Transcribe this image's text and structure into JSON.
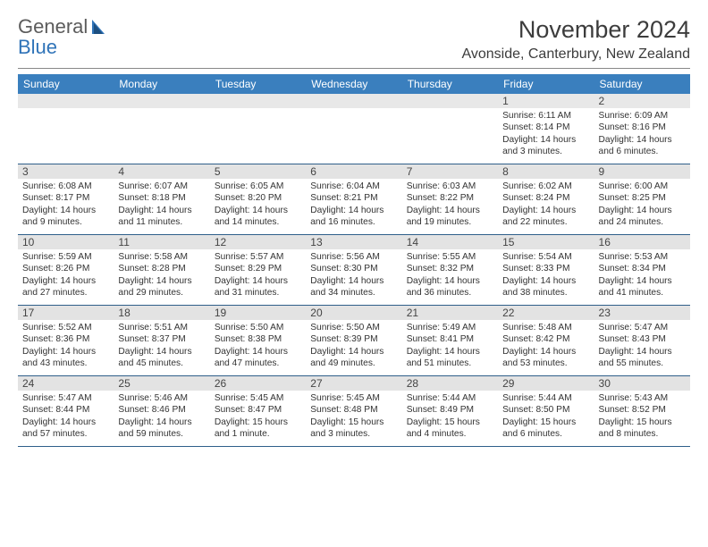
{
  "logo": {
    "line1": "General",
    "line2": "Blue"
  },
  "title": "November 2024",
  "location": "Avonside, Canterbury, New Zealand",
  "header_bg": "#3a7fbe",
  "weekdays": [
    "Sunday",
    "Monday",
    "Tuesday",
    "Wednesday",
    "Thursday",
    "Friday",
    "Saturday"
  ],
  "weeks": [
    [
      {
        "n": "",
        "sr": "",
        "ss": "",
        "dl": ""
      },
      {
        "n": "",
        "sr": "",
        "ss": "",
        "dl": ""
      },
      {
        "n": "",
        "sr": "",
        "ss": "",
        "dl": ""
      },
      {
        "n": "",
        "sr": "",
        "ss": "",
        "dl": ""
      },
      {
        "n": "",
        "sr": "",
        "ss": "",
        "dl": ""
      },
      {
        "n": "1",
        "sr": "Sunrise: 6:11 AM",
        "ss": "Sunset: 8:14 PM",
        "dl": "Daylight: 14 hours and 3 minutes."
      },
      {
        "n": "2",
        "sr": "Sunrise: 6:09 AM",
        "ss": "Sunset: 8:16 PM",
        "dl": "Daylight: 14 hours and 6 minutes."
      }
    ],
    [
      {
        "n": "3",
        "sr": "Sunrise: 6:08 AM",
        "ss": "Sunset: 8:17 PM",
        "dl": "Daylight: 14 hours and 9 minutes."
      },
      {
        "n": "4",
        "sr": "Sunrise: 6:07 AM",
        "ss": "Sunset: 8:18 PM",
        "dl": "Daylight: 14 hours and 11 minutes."
      },
      {
        "n": "5",
        "sr": "Sunrise: 6:05 AM",
        "ss": "Sunset: 8:20 PM",
        "dl": "Daylight: 14 hours and 14 minutes."
      },
      {
        "n": "6",
        "sr": "Sunrise: 6:04 AM",
        "ss": "Sunset: 8:21 PM",
        "dl": "Daylight: 14 hours and 16 minutes."
      },
      {
        "n": "7",
        "sr": "Sunrise: 6:03 AM",
        "ss": "Sunset: 8:22 PM",
        "dl": "Daylight: 14 hours and 19 minutes."
      },
      {
        "n": "8",
        "sr": "Sunrise: 6:02 AM",
        "ss": "Sunset: 8:24 PM",
        "dl": "Daylight: 14 hours and 22 minutes."
      },
      {
        "n": "9",
        "sr": "Sunrise: 6:00 AM",
        "ss": "Sunset: 8:25 PM",
        "dl": "Daylight: 14 hours and 24 minutes."
      }
    ],
    [
      {
        "n": "10",
        "sr": "Sunrise: 5:59 AM",
        "ss": "Sunset: 8:26 PM",
        "dl": "Daylight: 14 hours and 27 minutes."
      },
      {
        "n": "11",
        "sr": "Sunrise: 5:58 AM",
        "ss": "Sunset: 8:28 PM",
        "dl": "Daylight: 14 hours and 29 minutes."
      },
      {
        "n": "12",
        "sr": "Sunrise: 5:57 AM",
        "ss": "Sunset: 8:29 PM",
        "dl": "Daylight: 14 hours and 31 minutes."
      },
      {
        "n": "13",
        "sr": "Sunrise: 5:56 AM",
        "ss": "Sunset: 8:30 PM",
        "dl": "Daylight: 14 hours and 34 minutes."
      },
      {
        "n": "14",
        "sr": "Sunrise: 5:55 AM",
        "ss": "Sunset: 8:32 PM",
        "dl": "Daylight: 14 hours and 36 minutes."
      },
      {
        "n": "15",
        "sr": "Sunrise: 5:54 AM",
        "ss": "Sunset: 8:33 PM",
        "dl": "Daylight: 14 hours and 38 minutes."
      },
      {
        "n": "16",
        "sr": "Sunrise: 5:53 AM",
        "ss": "Sunset: 8:34 PM",
        "dl": "Daylight: 14 hours and 41 minutes."
      }
    ],
    [
      {
        "n": "17",
        "sr": "Sunrise: 5:52 AM",
        "ss": "Sunset: 8:36 PM",
        "dl": "Daylight: 14 hours and 43 minutes."
      },
      {
        "n": "18",
        "sr": "Sunrise: 5:51 AM",
        "ss": "Sunset: 8:37 PM",
        "dl": "Daylight: 14 hours and 45 minutes."
      },
      {
        "n": "19",
        "sr": "Sunrise: 5:50 AM",
        "ss": "Sunset: 8:38 PM",
        "dl": "Daylight: 14 hours and 47 minutes."
      },
      {
        "n": "20",
        "sr": "Sunrise: 5:50 AM",
        "ss": "Sunset: 8:39 PM",
        "dl": "Daylight: 14 hours and 49 minutes."
      },
      {
        "n": "21",
        "sr": "Sunrise: 5:49 AM",
        "ss": "Sunset: 8:41 PM",
        "dl": "Daylight: 14 hours and 51 minutes."
      },
      {
        "n": "22",
        "sr": "Sunrise: 5:48 AM",
        "ss": "Sunset: 8:42 PM",
        "dl": "Daylight: 14 hours and 53 minutes."
      },
      {
        "n": "23",
        "sr": "Sunrise: 5:47 AM",
        "ss": "Sunset: 8:43 PM",
        "dl": "Daylight: 14 hours and 55 minutes."
      }
    ],
    [
      {
        "n": "24",
        "sr": "Sunrise: 5:47 AM",
        "ss": "Sunset: 8:44 PM",
        "dl": "Daylight: 14 hours and 57 minutes."
      },
      {
        "n": "25",
        "sr": "Sunrise: 5:46 AM",
        "ss": "Sunset: 8:46 PM",
        "dl": "Daylight: 14 hours and 59 minutes."
      },
      {
        "n": "26",
        "sr": "Sunrise: 5:45 AM",
        "ss": "Sunset: 8:47 PM",
        "dl": "Daylight: 15 hours and 1 minute."
      },
      {
        "n": "27",
        "sr": "Sunrise: 5:45 AM",
        "ss": "Sunset: 8:48 PM",
        "dl": "Daylight: 15 hours and 3 minutes."
      },
      {
        "n": "28",
        "sr": "Sunrise: 5:44 AM",
        "ss": "Sunset: 8:49 PM",
        "dl": "Daylight: 15 hours and 4 minutes."
      },
      {
        "n": "29",
        "sr": "Sunrise: 5:44 AM",
        "ss": "Sunset: 8:50 PM",
        "dl": "Daylight: 15 hours and 6 minutes."
      },
      {
        "n": "30",
        "sr": "Sunrise: 5:43 AM",
        "ss": "Sunset: 8:52 PM",
        "dl": "Daylight: 15 hours and 8 minutes."
      }
    ]
  ]
}
